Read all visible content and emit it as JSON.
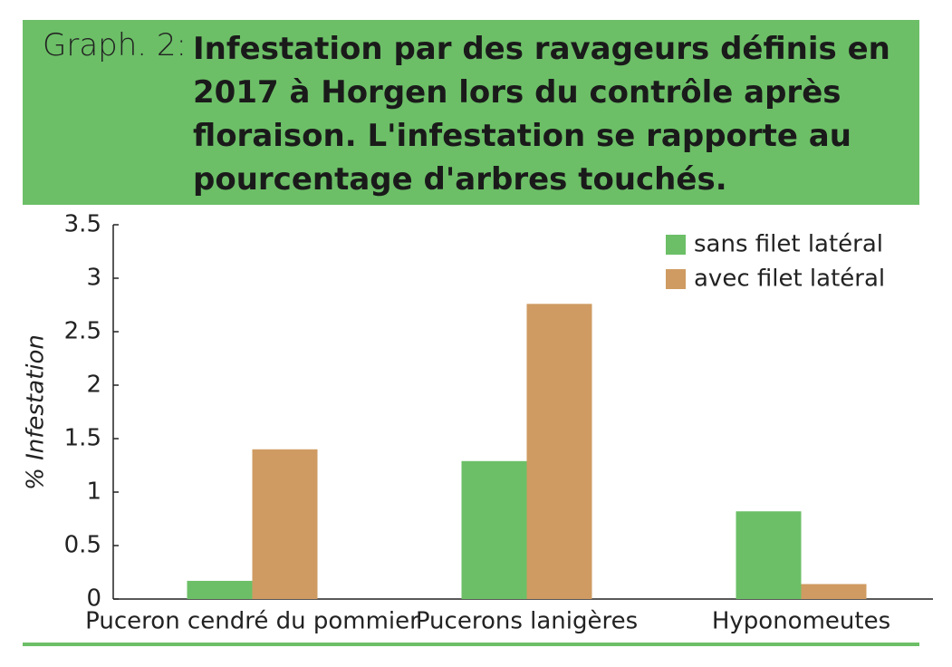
{
  "chart_data": {
    "type": "bar",
    "label": "Graph. 2:",
    "title": "Infestation par des ravageurs définis en 2017 à Horgen lors du contrôle après floraison. L'infestation se rapporte au pourcentage d'arbres touchés.",
    "ylabel": "% Infestation",
    "categories": [
      "Puceron cendré du pommier",
      "Pucerons lanigères",
      "Hyponomeutes"
    ],
    "series": [
      {
        "name": "sans filet latéral",
        "color": "#6cbf67",
        "values": [
          0.17,
          1.29,
          0.82
        ]
      },
      {
        "name": "avec filet latéral",
        "color": "#cf9b62",
        "values": [
          1.4,
          2.76,
          0.14
        ]
      }
    ],
    "ylim": [
      0,
      3.5
    ],
    "yticks": [
      0,
      0.5,
      1,
      1.5,
      2,
      2.5,
      3,
      3.5
    ],
    "legend": "upper right"
  }
}
